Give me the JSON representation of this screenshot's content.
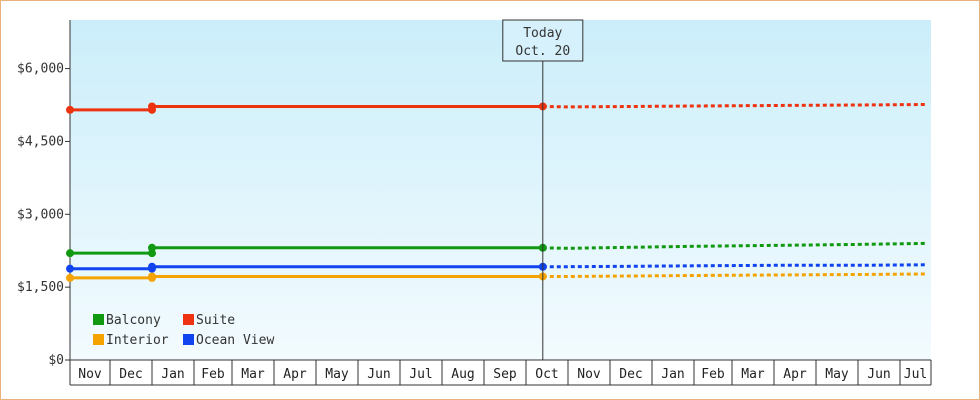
{
  "chart_data": {
    "type": "line",
    "title": "",
    "xlabel": "",
    "ylabel": "",
    "ylim": [
      0,
      7000
    ],
    "y_ticks": [
      0,
      1500,
      3000,
      4500,
      6000
    ],
    "y_tick_labels": [
      "$0",
      "$1,500",
      "$3,000",
      "$4,500",
      "$6,000"
    ],
    "months": [
      "Nov",
      "Dec",
      "Jan",
      "Feb",
      "Mar",
      "Apr",
      "May",
      "Jun",
      "Jul",
      "Aug",
      "Sep",
      "Oct",
      "Nov",
      "Dec",
      "Jan",
      "Feb",
      "Mar",
      "Apr",
      "May",
      "Jun",
      "Jul"
    ],
    "grid": true,
    "legend_position": "bottom-left",
    "today_marker": {
      "line1": "Today",
      "line2": "Oct. 20",
      "month_index": 11.4
    },
    "series": [
      {
        "name": "Balcony",
        "color": "#119911",
        "historical": [
          [
            0,
            2200
          ],
          [
            2,
            2200
          ],
          [
            2,
            2310
          ],
          [
            11.4,
            2310
          ]
        ],
        "forecast": [
          [
            11.4,
            2310
          ],
          [
            12,
            2300
          ],
          [
            13.5,
            2320
          ],
          [
            15,
            2340
          ],
          [
            17,
            2360
          ],
          [
            19,
            2380
          ],
          [
            20.8,
            2400
          ]
        ]
      },
      {
        "name": "Suite",
        "color": "#ee3311",
        "historical": [
          [
            0,
            5150
          ],
          [
            2,
            5150
          ],
          [
            2,
            5220
          ],
          [
            11.4,
            5220
          ]
        ],
        "forecast": [
          [
            11.4,
            5220
          ],
          [
            12,
            5210
          ],
          [
            13.5,
            5220
          ],
          [
            15,
            5230
          ],
          [
            17,
            5240
          ],
          [
            19,
            5250
          ],
          [
            20.8,
            5260
          ]
        ]
      },
      {
        "name": "Interior",
        "color": "#f5a300",
        "historical": [
          [
            0,
            1690
          ],
          [
            2,
            1690
          ],
          [
            2,
            1720
          ],
          [
            11.4,
            1720
          ]
        ],
        "forecast": [
          [
            11.4,
            1720
          ],
          [
            12,
            1720
          ],
          [
            13.5,
            1730
          ],
          [
            15,
            1740
          ],
          [
            17,
            1750
          ],
          [
            19,
            1760
          ],
          [
            20.8,
            1770
          ]
        ]
      },
      {
        "name": "Ocean View",
        "color": "#1144ee",
        "historical": [
          [
            0,
            1880
          ],
          [
            2,
            1880
          ],
          [
            2,
            1920
          ],
          [
            11.4,
            1920
          ]
        ],
        "forecast": [
          [
            11.4,
            1920
          ],
          [
            12,
            1920
          ],
          [
            13.5,
            1930
          ],
          [
            15,
            1940
          ],
          [
            17,
            1950
          ],
          [
            19,
            1950
          ],
          [
            20.8,
            1960
          ]
        ]
      }
    ],
    "legend_order": [
      "Balcony",
      "Suite",
      "Interior",
      "Ocean View"
    ]
  }
}
